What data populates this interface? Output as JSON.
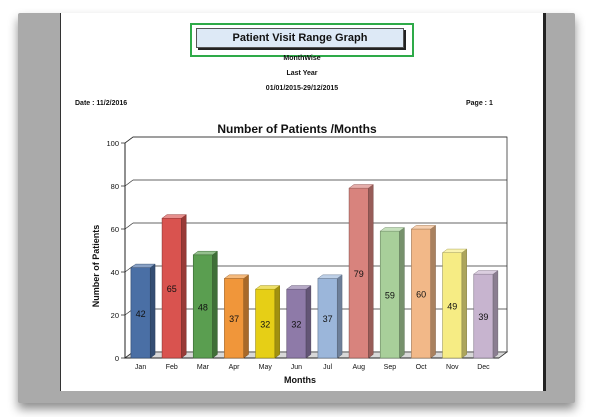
{
  "report": {
    "title": "Patient Visit Range Graph",
    "period_type": "MonthWise",
    "period": "Last Year",
    "date_range": "01/01/2015-29/12/2015",
    "date_label": "Date  :  11/2/2016",
    "page_label": "Page : 1"
  },
  "chart_data": {
    "type": "bar",
    "title": "Number of Patients /Months",
    "xlabel": "Months",
    "ylabel": "Number of Patients",
    "ylim": [
      0,
      100
    ],
    "yticks": [
      0,
      20,
      40,
      60,
      80,
      100
    ],
    "grid": true,
    "categories": [
      "Jan",
      "Feb",
      "Mar",
      "Apr",
      "May",
      "Jun",
      "Jul",
      "Aug",
      "Sep",
      "Oct",
      "Nov",
      "Dec"
    ],
    "values": [
      42,
      65,
      48,
      37,
      32,
      32,
      37,
      79,
      59,
      60,
      49,
      39
    ],
    "data_labels": [
      "42",
      "65",
      "48",
      "37",
      "32",
      "32",
      "37",
      "79",
      "59",
      "60",
      "49",
      "39"
    ],
    "colors": [
      "#4a6fa5",
      "#d9534f",
      "#5a9e50",
      "#f0963a",
      "#e6cf16",
      "#8e7aa8",
      "#9bb6da",
      "#d8837d",
      "#a8cf9a",
      "#f2b888",
      "#f6ec84",
      "#c7b4cf"
    ]
  }
}
